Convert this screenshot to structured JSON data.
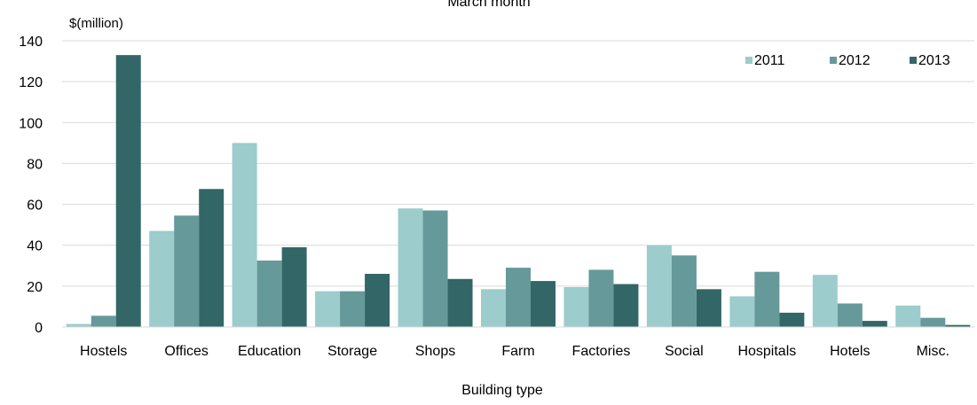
{
  "chart_data": {
    "type": "bar",
    "title": "March month",
    "unit_label": "$(million)",
    "xlabel": "Building type",
    "ylabel": "",
    "ylim": [
      0,
      140
    ],
    "yticks": [
      0,
      20,
      40,
      60,
      80,
      100,
      120,
      140
    ],
    "grid": true,
    "legend_position": "top-right",
    "categories": [
      "Hostels",
      "Offices",
      "Education",
      "Storage",
      "Shops",
      "Farm",
      "Factories",
      "Social",
      "Hospitals",
      "Hotels",
      "Misc."
    ],
    "series": [
      {
        "name": "2011",
        "color": "#9ccccc",
        "values": [
          1.5,
          47,
          90,
          17.5,
          58,
          18.5,
          19.5,
          40,
          15,
          25.5,
          10.5
        ]
      },
      {
        "name": "2012",
        "color": "#669999",
        "values": [
          5.5,
          54.5,
          32.5,
          17.5,
          57,
          29,
          28,
          35,
          27,
          11.5,
          4.5
        ]
      },
      {
        "name": "2013",
        "color": "#336666",
        "values": [
          133,
          67.5,
          39,
          26,
          23.5,
          22.5,
          21,
          18.5,
          7,
          3,
          1
        ]
      }
    ]
  }
}
